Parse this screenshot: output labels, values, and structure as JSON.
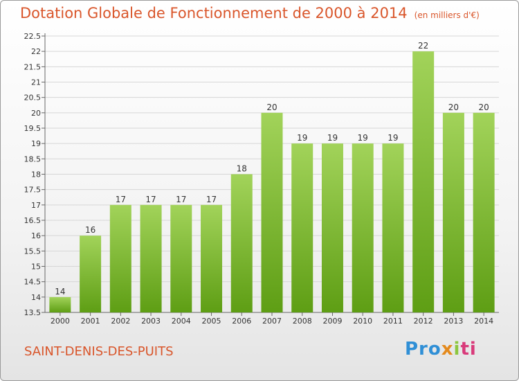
{
  "header": {
    "title": "Dotation Globale de Fonctionnement de 2000 à 2014",
    "unit": "(en milliers d'€)"
  },
  "footer": {
    "commune": "SAINT-DENIS-DES-PUITS",
    "logo": {
      "p1": "Pro",
      "p2": "x",
      "p3": "i",
      "p4": "ti"
    }
  },
  "colors": {
    "bar_top": "#a2d35a",
    "bar_bottom": "#5e9e14",
    "title": "#d9552a"
  },
  "chart_data": {
    "type": "bar",
    "title": "Dotation Globale de Fonctionnement de 2000 à 2014",
    "subtitle": "(en milliers d'€)",
    "categories": [
      "2000",
      "2001",
      "2002",
      "2003",
      "2004",
      "2005",
      "2006",
      "2007",
      "2008",
      "2009",
      "2010",
      "2011",
      "2012",
      "2013",
      "2014"
    ],
    "values": [
      14,
      16,
      17,
      17,
      17,
      17,
      18,
      20,
      19,
      19,
      19,
      19,
      22,
      20,
      20
    ],
    "value_labels": [
      "14",
      "16",
      "17",
      "17",
      "17",
      "17",
      "18",
      "20",
      "19",
      "19",
      "19",
      "19",
      "22",
      "20",
      "20"
    ],
    "ylim": [
      13.5,
      22.5
    ],
    "yticks": [
      "13.5",
      "14",
      "14.5",
      "15",
      "15.5",
      "16",
      "16.5",
      "17",
      "17.5",
      "18",
      "18.5",
      "19",
      "19.5",
      "20",
      "20.5",
      "21",
      "21.5",
      "22",
      "22.5"
    ],
    "grid": true,
    "xlabel": "",
    "ylabel": ""
  }
}
